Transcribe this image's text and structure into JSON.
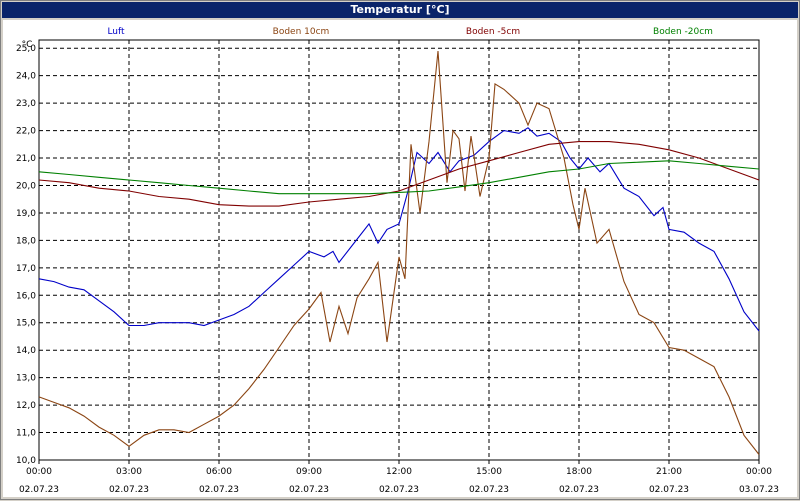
{
  "window": {
    "title": "Temperatur [°C]"
  },
  "chart_data": {
    "type": "line",
    "ylabel": "°C",
    "ylim": [
      10,
      25.3
    ],
    "xlim": [
      0,
      24
    ],
    "y_ticks": [
      10.0,
      11.0,
      12.0,
      13.0,
      14.0,
      15.0,
      16.0,
      17.0,
      18.0,
      19.0,
      20.0,
      21.0,
      22.0,
      23.0,
      24.0,
      25.0
    ],
    "y_tick_labels": [
      "10,0",
      "11,0",
      "12,0",
      "13,0",
      "14,0",
      "15,0",
      "16,0",
      "17,0",
      "18,0",
      "19,0",
      "20,0",
      "21,0",
      "22,0",
      "23,0",
      "24,0",
      "25,0"
    ],
    "x_ticks": [
      {
        "time": "00:00",
        "date": "02.07.23"
      },
      {
        "time": "03:00",
        "date": "02.07.23"
      },
      {
        "time": "06:00",
        "date": "02.07.23"
      },
      {
        "time": "09:00",
        "date": "02.07.23"
      },
      {
        "time": "12:00",
        "date": "02.07.23"
      },
      {
        "time": "15:00",
        "date": "02.07.23"
      },
      {
        "time": "18:00",
        "date": "02.07.23"
      },
      {
        "time": "21:00",
        "date": "02.07.23"
      },
      {
        "time": "00:00",
        "date": "03.07.23"
      }
    ],
    "grid": true,
    "legend_position": "top",
    "series": [
      {
        "name": "Luft",
        "color": "#0000c8",
        "points": [
          [
            0,
            16.6
          ],
          [
            0.5,
            16.5
          ],
          [
            1,
            16.3
          ],
          [
            1.5,
            16.2
          ],
          [
            2,
            15.8
          ],
          [
            2.5,
            15.4
          ],
          [
            3,
            14.9
          ],
          [
            3.5,
            14.9
          ],
          [
            4,
            15.0
          ],
          [
            5,
            15.0
          ],
          [
            5.5,
            14.9
          ],
          [
            6,
            15.1
          ],
          [
            6.5,
            15.3
          ],
          [
            7,
            15.6
          ],
          [
            7.5,
            16.1
          ],
          [
            8,
            16.6
          ],
          [
            8.5,
            17.1
          ],
          [
            9,
            17.6
          ],
          [
            9.5,
            17.4
          ],
          [
            9.8,
            17.6
          ],
          [
            10,
            17.2
          ],
          [
            10.5,
            17.9
          ],
          [
            11,
            18.6
          ],
          [
            11.3,
            17.9
          ],
          [
            11.6,
            18.4
          ],
          [
            12,
            18.6
          ],
          [
            12.3,
            19.8
          ],
          [
            12.6,
            21.2
          ],
          [
            13,
            20.8
          ],
          [
            13.3,
            21.2
          ],
          [
            13.7,
            20.5
          ],
          [
            14,
            20.9
          ],
          [
            14.5,
            21.1
          ],
          [
            15,
            21.6
          ],
          [
            15.5,
            22.0
          ],
          [
            16,
            21.9
          ],
          [
            16.3,
            22.1
          ],
          [
            16.6,
            21.8
          ],
          [
            17,
            21.9
          ],
          [
            17.4,
            21.6
          ],
          [
            17.7,
            21.0
          ],
          [
            18,
            20.6
          ],
          [
            18.3,
            21.0
          ],
          [
            18.7,
            20.5
          ],
          [
            19,
            20.8
          ],
          [
            19.5,
            19.9
          ],
          [
            20,
            19.6
          ],
          [
            20.5,
            18.9
          ],
          [
            20.8,
            19.2
          ],
          [
            21,
            18.4
          ],
          [
            21.5,
            18.3
          ],
          [
            22,
            17.9
          ],
          [
            22.5,
            17.6
          ],
          [
            23,
            16.6
          ],
          [
            23.5,
            15.4
          ],
          [
            24,
            14.7
          ]
        ]
      },
      {
        "name": "Boden 10cm",
        "color": "#8b4513",
        "points": [
          [
            0,
            12.3
          ],
          [
            0.5,
            12.1
          ],
          [
            1,
            11.9
          ],
          [
            1.5,
            11.6
          ],
          [
            2,
            11.2
          ],
          [
            2.5,
            10.9
          ],
          [
            3,
            10.5
          ],
          [
            3.5,
            10.9
          ],
          [
            4,
            11.1
          ],
          [
            4.5,
            11.1
          ],
          [
            5,
            11.0
          ],
          [
            5.5,
            11.3
          ],
          [
            6,
            11.6
          ],
          [
            6.5,
            12.0
          ],
          [
            7,
            12.6
          ],
          [
            7.5,
            13.3
          ],
          [
            8,
            14.1
          ],
          [
            8.5,
            14.9
          ],
          [
            9,
            15.5
          ],
          [
            9.4,
            16.1
          ],
          [
            9.7,
            14.3
          ],
          [
            10,
            15.6
          ],
          [
            10.3,
            14.6
          ],
          [
            10.6,
            15.9
          ],
          [
            11,
            16.6
          ],
          [
            11.3,
            17.2
          ],
          [
            11.6,
            14.3
          ],
          [
            12,
            17.4
          ],
          [
            12.2,
            16.6
          ],
          [
            12.4,
            21.5
          ],
          [
            12.7,
            19.0
          ],
          [
            13,
            21.6
          ],
          [
            13.3,
            24.9
          ],
          [
            13.6,
            20.1
          ],
          [
            13.8,
            22.0
          ],
          [
            14,
            21.7
          ],
          [
            14.2,
            19.8
          ],
          [
            14.4,
            21.8
          ],
          [
            14.7,
            19.6
          ],
          [
            15,
            21.0
          ],
          [
            15.2,
            23.7
          ],
          [
            15.5,
            23.5
          ],
          [
            16,
            23.0
          ],
          [
            16.3,
            22.2
          ],
          [
            16.6,
            23.0
          ],
          [
            17,
            22.8
          ],
          [
            17.5,
            21.0
          ],
          [
            17.8,
            19.3
          ],
          [
            18,
            18.4
          ],
          [
            18.2,
            19.9
          ],
          [
            18.6,
            17.9
          ],
          [
            19,
            18.4
          ],
          [
            19.5,
            16.5
          ],
          [
            20,
            15.3
          ],
          [
            20.5,
            15.0
          ],
          [
            21,
            14.1
          ],
          [
            21.5,
            14.0
          ],
          [
            22,
            13.7
          ],
          [
            22.5,
            13.4
          ],
          [
            23,
            12.3
          ],
          [
            23.5,
            10.9
          ],
          [
            24,
            10.2
          ]
        ]
      },
      {
        "name": "Boden -5cm",
        "color": "#800000",
        "points": [
          [
            0,
            20.2
          ],
          [
            1,
            20.1
          ],
          [
            2,
            19.9
          ],
          [
            3,
            19.8
          ],
          [
            4,
            19.6
          ],
          [
            5,
            19.5
          ],
          [
            6,
            19.3
          ],
          [
            7,
            19.25
          ],
          [
            8,
            19.25
          ],
          [
            9,
            19.4
          ],
          [
            10,
            19.5
          ],
          [
            11,
            19.6
          ],
          [
            12,
            19.8
          ],
          [
            13,
            20.2
          ],
          [
            14,
            20.6
          ],
          [
            15,
            20.9
          ],
          [
            16,
            21.2
          ],
          [
            17,
            21.5
          ],
          [
            18,
            21.6
          ],
          [
            19,
            21.6
          ],
          [
            20,
            21.5
          ],
          [
            21,
            21.3
          ],
          [
            22,
            21.0
          ],
          [
            23,
            20.6
          ],
          [
            24,
            20.2
          ]
        ]
      },
      {
        "name": "Boden -20cm",
        "color": "#008000",
        "points": [
          [
            0,
            20.5
          ],
          [
            1,
            20.4
          ],
          [
            2,
            20.3
          ],
          [
            3,
            20.2
          ],
          [
            4,
            20.1
          ],
          [
            5,
            20.0
          ],
          [
            6,
            19.9
          ],
          [
            7,
            19.8
          ],
          [
            8,
            19.7
          ],
          [
            9,
            19.7
          ],
          [
            10,
            19.7
          ],
          [
            11,
            19.7
          ],
          [
            12,
            19.75
          ],
          [
            13,
            19.8
          ],
          [
            14,
            19.95
          ],
          [
            15,
            20.1
          ],
          [
            16,
            20.3
          ],
          [
            17,
            20.5
          ],
          [
            18,
            20.6
          ],
          [
            19,
            20.8
          ],
          [
            20,
            20.85
          ],
          [
            21,
            20.9
          ],
          [
            22,
            20.8
          ],
          [
            23,
            20.7
          ],
          [
            24,
            20.6
          ]
        ]
      }
    ]
  }
}
